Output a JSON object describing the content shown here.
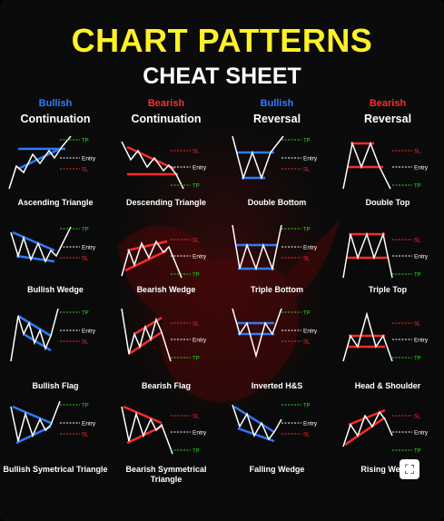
{
  "title": "CHART PATTERNS",
  "subtitle": "CHEAT SHEET",
  "columns": [
    {
      "kind": "Bullish",
      "type": "Continuation",
      "color": "#2e7bff"
    },
    {
      "kind": "Bearish",
      "type": "Continuation",
      "color": "#ff2b2b"
    },
    {
      "kind": "Bullish",
      "type": "Reversal",
      "color": "#2e7bff"
    },
    {
      "kind": "Bearish",
      "type": "Reversal",
      "color": "#ff2b2b"
    }
  ],
  "colors": {
    "up": "#2e7bff",
    "down": "#ff2b2b",
    "target": "#22dd22",
    "entry": "#ffffff",
    "title": "#fff12a"
  },
  "marks": {
    "entry": "Entry",
    "tp": "TP",
    "sl": "SL"
  },
  "patterns": [
    {
      "name": "Ascending Triangle",
      "shape": "asc-triangle",
      "dir": "up"
    },
    {
      "name": "Descending Triangle",
      "shape": "desc-triangle",
      "dir": "down"
    },
    {
      "name": "Double Bottom",
      "shape": "double-bottom",
      "dir": "up"
    },
    {
      "name": "Double Top",
      "shape": "double-top",
      "dir": "down"
    },
    {
      "name": "Bullish Wedge",
      "shape": "bull-wedge",
      "dir": "up"
    },
    {
      "name": "Bearish Wedge",
      "shape": "bear-wedge",
      "dir": "down"
    },
    {
      "name": "Triple Bottom",
      "shape": "triple-bottom",
      "dir": "up"
    },
    {
      "name": "Triple Top",
      "shape": "triple-top",
      "dir": "down"
    },
    {
      "name": "Bullish Flag",
      "shape": "bull-flag",
      "dir": "up"
    },
    {
      "name": "Bearish Flag",
      "shape": "bear-flag",
      "dir": "down"
    },
    {
      "name": "Inverted H&S",
      "shape": "inv-hs",
      "dir": "up"
    },
    {
      "name": "Head & Shoulder",
      "shape": "hs",
      "dir": "down"
    },
    {
      "name": "Bullish Symetrical Triangle",
      "shape": "bull-sym",
      "dir": "up"
    },
    {
      "name": "Bearish Symmetrical Triangle",
      "shape": "bear-sym",
      "dir": "down"
    },
    {
      "name": "Falling Wedge",
      "shape": "falling-wedge",
      "dir": "up"
    },
    {
      "name": "Rising Wedge",
      "shape": "rising-wedge",
      "dir": "down"
    }
  ]
}
